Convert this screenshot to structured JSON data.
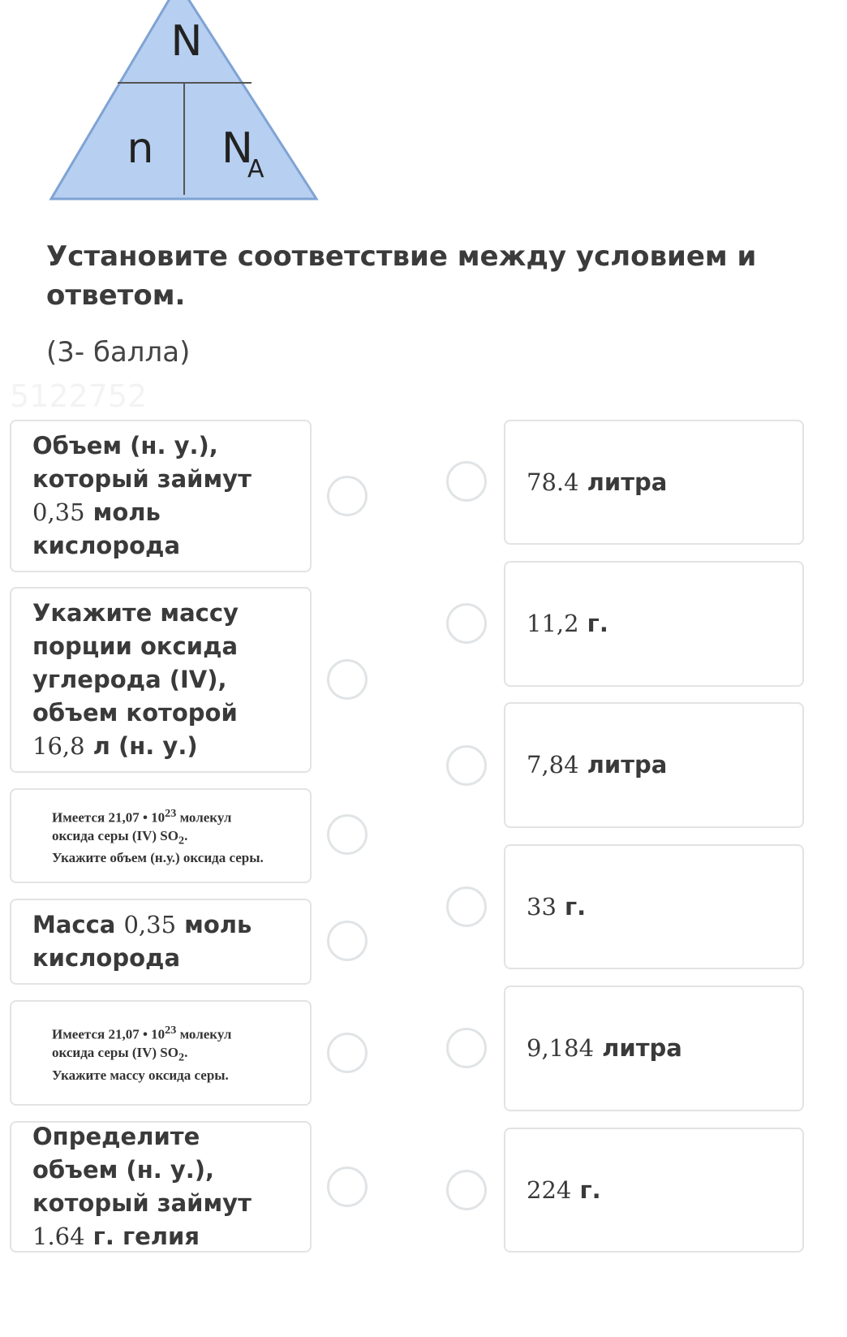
{
  "diagram": {
    "top": "N",
    "left": "n",
    "right": "N",
    "right_sub": "A",
    "fill": "#b7cff0"
  },
  "question": {
    "title": "Установите соответствие между условием и ответом.",
    "points": "(3- балла)",
    "watermark": "5122752"
  },
  "left_items": [
    {
      "parts": [
        [
          "b",
          "Объем (н. у.), который займут "
        ],
        [
          "n",
          "0,35"
        ],
        [
          "b",
          " моль кислорода"
        ]
      ]
    },
    {
      "parts": [
        [
          "b",
          "Укажите массу порции оксида углерода (IV), объем которой "
        ],
        [
          "n",
          "16,8"
        ],
        [
          "b",
          " л (н. у.)"
        ]
      ]
    },
    {
      "image_text": [
        "Имеется  21,07 • 10",
        "23",
        " молекул",
        "оксида серы (IV) SO",
        "2",
        ".",
        "Укажите  объем (н.у.) оксида серы."
      ]
    },
    {
      "parts": [
        [
          "b",
          "Масса "
        ],
        [
          "n",
          "0,35"
        ],
        [
          "b",
          " моль кислорода"
        ]
      ]
    },
    {
      "image_text": [
        "Имеется 21,07 • 10",
        "23",
        " молекул",
        "оксида серы (IV) SO",
        "2",
        ".",
        "Укажите  массу оксида серы."
      ]
    },
    {
      "parts": [
        [
          "b",
          "Определите объем (н. у.), который займут "
        ],
        [
          "n",
          "1.64"
        ],
        [
          "b",
          " г. гелия"
        ]
      ]
    }
  ],
  "right_items": [
    {
      "num": "78.4",
      "unit": " литра"
    },
    {
      "num": "11,2",
      "unit": " г."
    },
    {
      "num": "7,84",
      "unit": " литра"
    },
    {
      "num": "33",
      "unit": " г."
    },
    {
      "num": "9,184",
      "unit": " литра"
    },
    {
      "num": "224",
      "unit": " г."
    }
  ]
}
